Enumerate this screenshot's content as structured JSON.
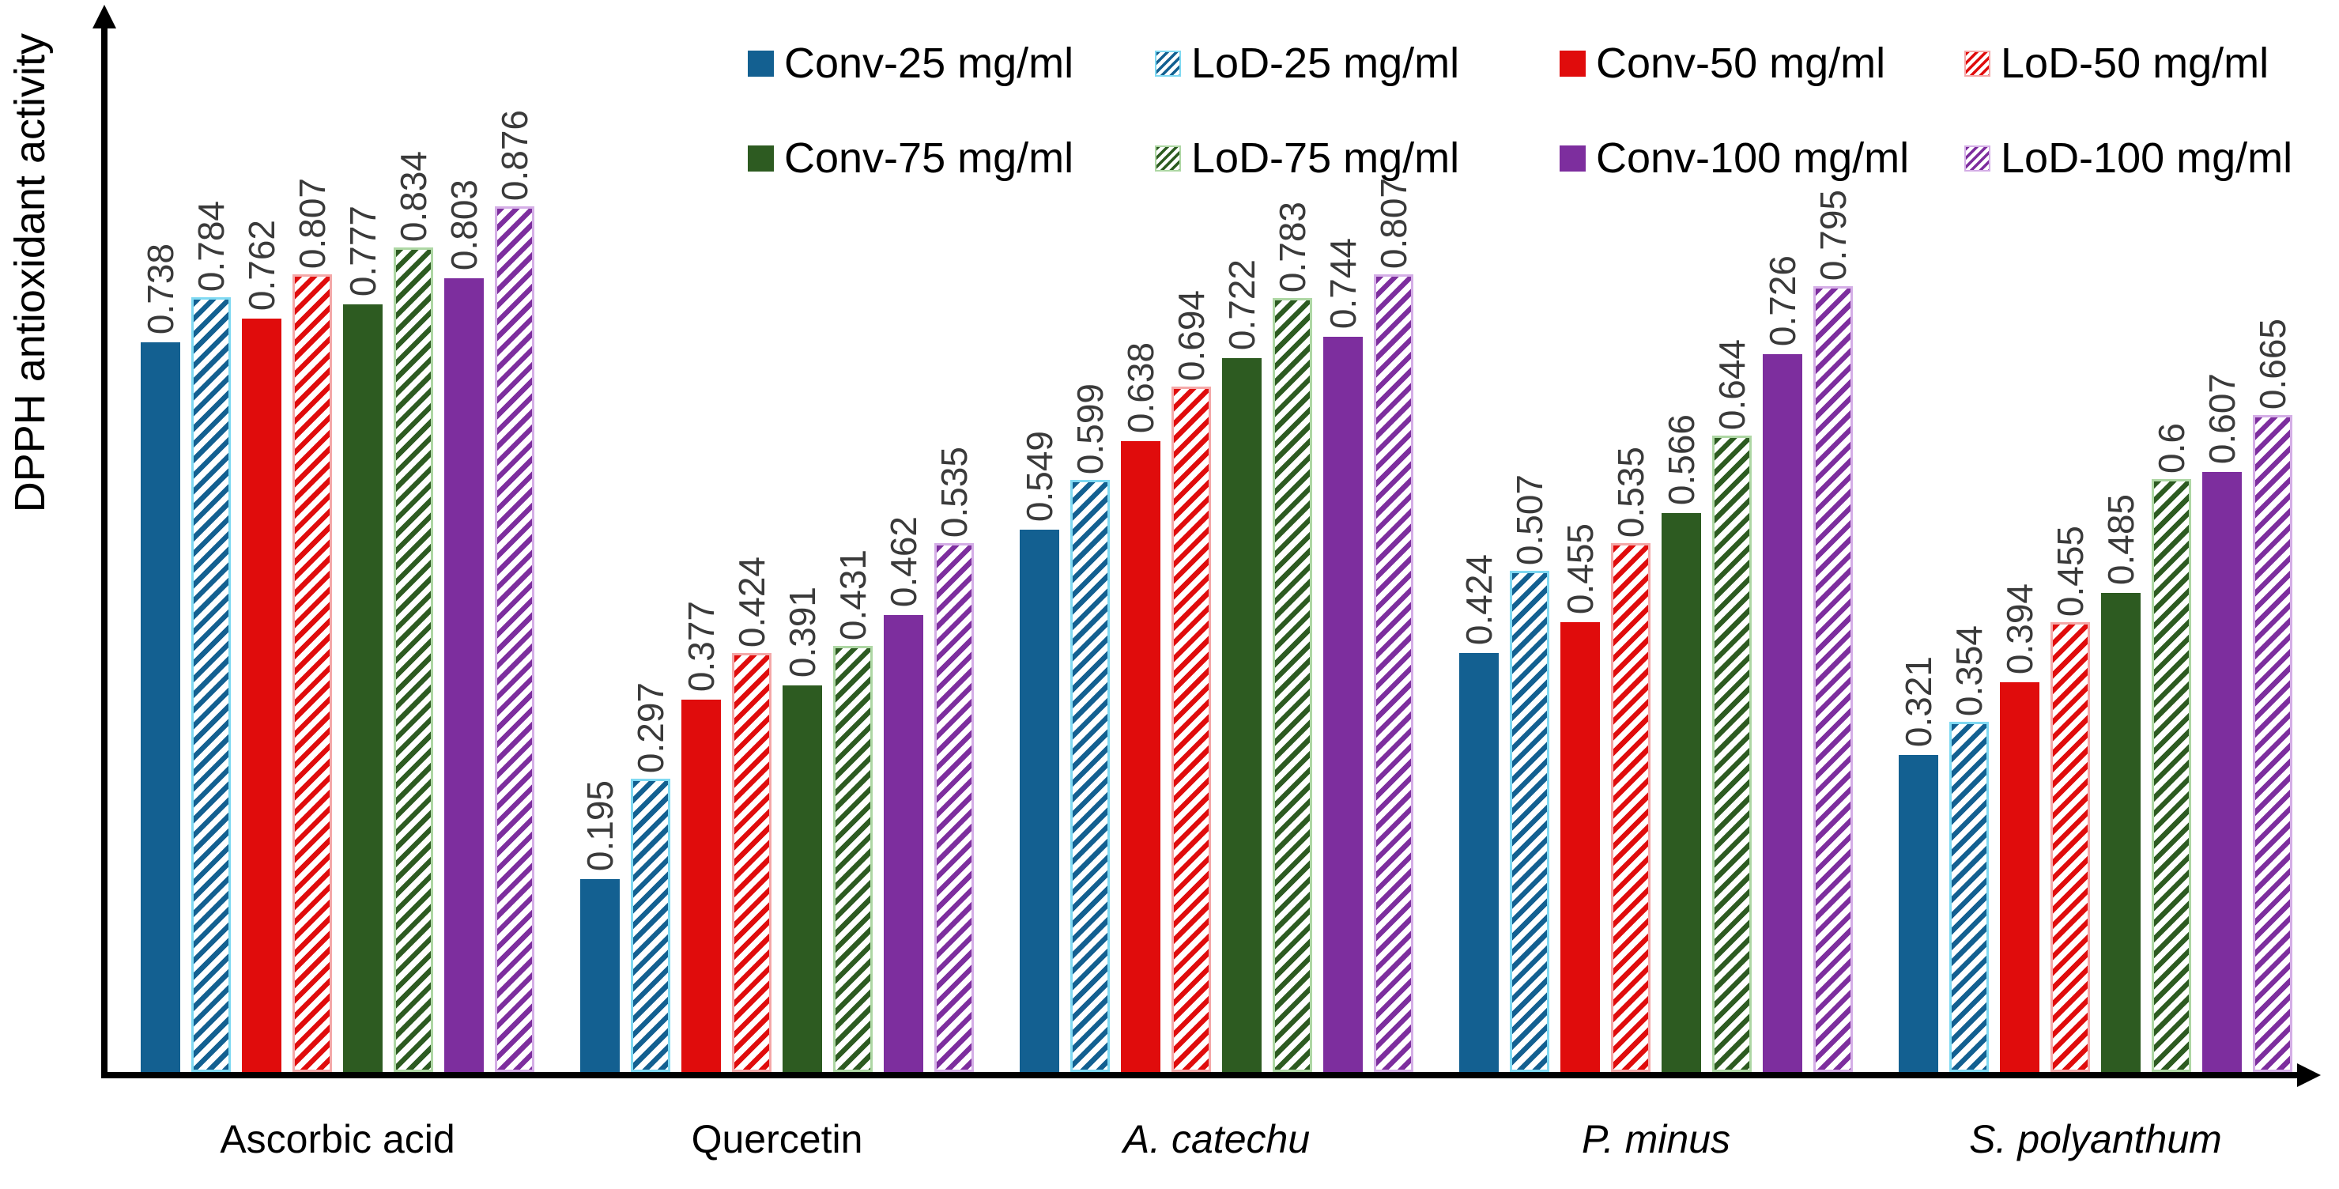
{
  "chart_data": {
    "type": "bar",
    "title": "",
    "xlabel": "",
    "ylabel": "DPPH antioxidant activity",
    "ylim": [
      0,
      1.0
    ],
    "grid": false,
    "legend_position": "top",
    "value_labels_rotated": true,
    "axis_arrows": true,
    "categories": [
      {
        "label": "Ascorbic acid",
        "italic": false
      },
      {
        "label": "Quercetin",
        "italic": false
      },
      {
        "label": "A. catechu",
        "italic": true
      },
      {
        "label": "P. minus",
        "italic": true
      },
      {
        "label": "S. polyanthum",
        "italic": true
      }
    ],
    "series": [
      {
        "name": "Conv-25 mg/ml",
        "style": "solid",
        "color": "#136091",
        "light": "#7fd9f2",
        "values": [
          0.738,
          0.195,
          0.549,
          0.424,
          0.321
        ]
      },
      {
        "name": "LoD-25 mg/ml",
        "style": "hatch",
        "color": "#136091",
        "light": "#7fd9f2",
        "values": [
          0.784,
          0.297,
          0.599,
          0.507,
          0.354
        ]
      },
      {
        "name": "Conv-50 mg/ml",
        "style": "solid",
        "color": "#e00c0c",
        "light": "#f4a8a8",
        "values": [
          0.762,
          0.377,
          0.638,
          0.455,
          0.394
        ]
      },
      {
        "name": "LoD-50 mg/ml",
        "style": "hatch",
        "color": "#e00c0c",
        "light": "#f4a8a8",
        "values": [
          0.807,
          0.424,
          0.694,
          0.535,
          0.455
        ]
      },
      {
        "name": "Conv-75 mg/ml",
        "style": "solid",
        "color": "#2d5b21",
        "light": "#aed7a4",
        "values": [
          0.777,
          0.391,
          0.722,
          0.566,
          0.485
        ]
      },
      {
        "name": "LoD-75 mg/ml",
        "style": "hatch",
        "color": "#2d5b21",
        "light": "#aed7a4",
        "values": [
          0.834,
          0.431,
          0.783,
          0.644,
          0.6
        ]
      },
      {
        "name": "Conv-100 mg/ml",
        "style": "solid",
        "color": "#7d2e9e",
        "light": "#d4aee6",
        "values": [
          0.803,
          0.462,
          0.744,
          0.726,
          0.607
        ]
      },
      {
        "name": "LoD-100 mg/ml",
        "style": "hatch",
        "color": "#7d2e9e",
        "light": "#d4aee6",
        "values": [
          0.876,
          0.535,
          0.807,
          0.795,
          0.665
        ]
      }
    ]
  }
}
